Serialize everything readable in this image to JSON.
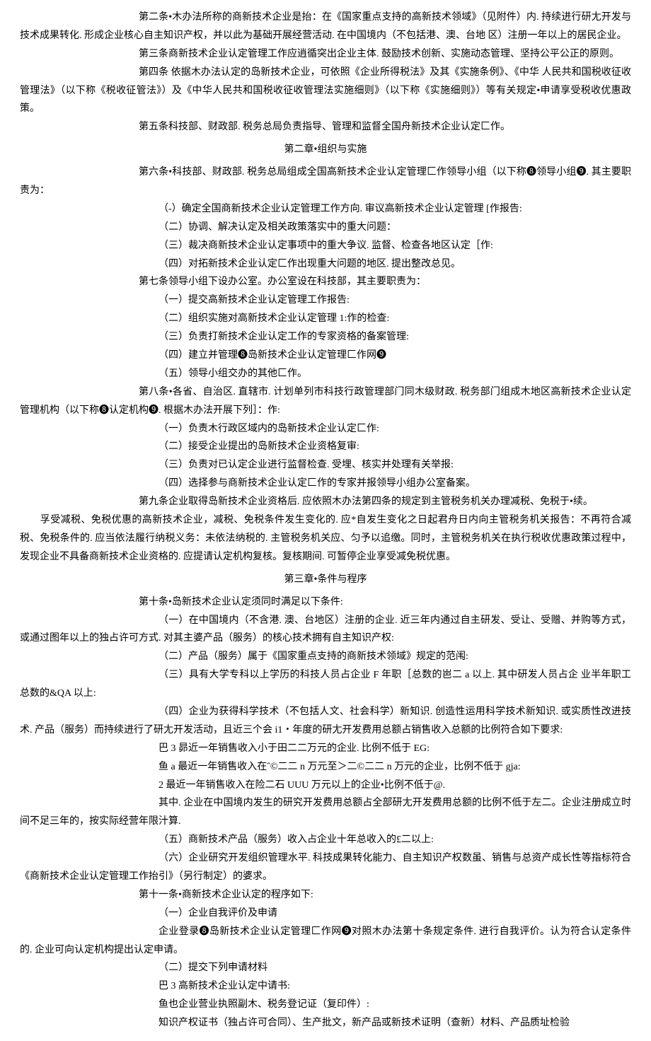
{
  "lines": [
    {
      "cls": "para indent-1",
      "bind": "p1"
    },
    {
      "cls": "para indent-1",
      "bind": "p2"
    },
    {
      "cls": "para indent-1",
      "bind": "p3"
    },
    {
      "cls": "para indent-1",
      "bind": "p4"
    },
    {
      "cls": "chapter",
      "bind": "ch2"
    },
    {
      "cls": "para indent-1",
      "bind": "p5"
    },
    {
      "cls": "list-item",
      "bind": "l6a"
    },
    {
      "cls": "list-item",
      "bind": "l6b"
    },
    {
      "cls": "list-item",
      "bind": "l6c"
    },
    {
      "cls": "list-item",
      "bind": "l6d"
    },
    {
      "cls": "para indent-1",
      "bind": "p7"
    },
    {
      "cls": "list-item",
      "bind": "l7a"
    },
    {
      "cls": "list-item",
      "bind": "l7b"
    },
    {
      "cls": "list-item",
      "bind": "l7c"
    },
    {
      "cls": "list-item",
      "bind": "l7d"
    },
    {
      "cls": "list-item",
      "bind": "l7e"
    },
    {
      "cls": "para indent-1",
      "bind": "p8"
    },
    {
      "cls": "list-item",
      "bind": "l8a"
    },
    {
      "cls": "list-item",
      "bind": "l8b"
    },
    {
      "cls": "list-item",
      "bind": "l8c"
    },
    {
      "cls": "list-item",
      "bind": "l8d"
    },
    {
      "cls": "para indent-1",
      "bind": "p9"
    },
    {
      "cls": "para indent-1 hang",
      "bind": "p9b"
    },
    {
      "cls": "chapter",
      "bind": "ch3"
    },
    {
      "cls": "para indent-1",
      "bind": "p10"
    },
    {
      "cls": "para indent-2",
      "bind": "l10a"
    },
    {
      "cls": "para indent-2",
      "bind": "l10b"
    },
    {
      "cls": "para indent-2",
      "bind": "l10c"
    },
    {
      "cls": "para indent-2",
      "bind": "l10d"
    },
    {
      "cls": "para indent-2",
      "bind": "l10d1"
    },
    {
      "cls": "para indent-2",
      "bind": "l10d2"
    },
    {
      "cls": "para indent-2",
      "bind": "l10d3"
    },
    {
      "cls": "para indent-2",
      "bind": "l10d4"
    },
    {
      "cls": "para indent-2",
      "bind": "l10e"
    },
    {
      "cls": "para indent-2",
      "bind": "l10f"
    },
    {
      "cls": "para indent-1",
      "bind": "p11"
    },
    {
      "cls": "para indent-2",
      "bind": "l11a"
    },
    {
      "cls": "para indent-2",
      "bind": "l11a1"
    },
    {
      "cls": "para indent-2",
      "bind": "l11b"
    },
    {
      "cls": "para indent-2",
      "bind": "l11b1"
    },
    {
      "cls": "para indent-2",
      "bind": "l11b2"
    },
    {
      "cls": "para indent-2",
      "bind": "l11b3"
    }
  ],
  "p1": "第二条•木办法所称的商新技术企业是抬：在《国家重点支持的高新技术领域》（见附件）内. 持续进行研尢开发与技术成果转化. 形成企业核心自主知识产权，并以此为基础开展经营活动. 在中国境内（不包括港、澳、台地 区）注册一年以上的居民企业。",
  "p2": "第三条商新技术企业认定管理工作应逍循突出企业主体. 鼓励技术创新、实施动态管理、坚持公平公正的原则。",
  "p3": "第四条 依据木办法认定的岛新技术企业，可依照《企业所得税法》及其《实施条例》、《中华 人民共和国税收征收管理法》（以下称《税收征管法》）及《中华人民共和国税收征收管理法实施细则》（以下称《实施细则》）等有关规定•申请享受税收优惠政策。",
  "p4": "第五条科技部、财政部. 税务总局负责指导、管理和监督全国舟新技术企业认定匚作。",
  "ch2": "第二章•组织与实施",
  "p5": "第六条•科技部、财政部. 税务总局组成全国高新技术企业认定管理匚作领导小组（以下称❽领导小组❾. 其主要职责为：",
  "l6a": "（-）确定全国商新技术企业认定管理工作方向. 审议高新技术企业认定管理 [作报告:",
  "l6b": "（二）协调、解决认定及相关政策落实中的重大问题：",
  "l6c": "（三）裁决商新技术企业认定事项中的重大争议. 监督、检查各地区认定［作:",
  "l6d": "（四）对拓新技术企业认定匚作出现重大问题的地区. 提出整改总见。",
  "p7": "第七条领导小组下设办公室。办公室设在科技部，其主要职责为：",
  "l7a": "（一）提交高新技术企业认定管理工作报告:",
  "l7b": "（二）组织实施对高新技术企业认定管理 1:作的检查:",
  "l7c": "（三）负责打新技术企业认定工作的专家资格的备案管理:",
  "l7d": "（四）建立并管理❽岛新技术企业认定管理匚作网❾",
  "l7e": "（五）领导小组交办的其他匚作。",
  "p8": "第八条•各省、自治区. 直辖市. 计划单列市科技行政管理部门同木级财政. 税务部门组成木地区高新技术企业认定管理机构（以下称❽认定机构❾. 根据木办法开展下列］：作:",
  "l8a": "（一）负责木行政区域内的岛新技术企业认定匚作:",
  "l8b": "（二）接受企业提出的岛新技术企业资格复审:",
  "l8c": "（三）负责对已认定企业进行监督检查. 受埋、核实并处理有关举报:",
  "l8d": "（四）选择参与商新技术企业认定匚作的专家并报领导小组办公室备案。",
  "p9": "第九条企业取得岛新技术企业资格后. 应依照木办法第四条的规定到主管税务机关办理减税、免税于•续。",
  "p9b": "　　孚受减税、免税优惠的高新技术企业，减税、免税条件发生变化的. 应*自发生变化之日起君舟日内向主管税务机关报告：不再符合减税、免税条件的. 应当依法履行纳税义务：未依法纳税的. 主管税务机关应、匀予以追缴。同时，主管税务机关在执行税收优惠政策过程中，发现企业不具备商新技术企业资格的. 应提请认定机构复核。复核期间. 可暂停企业享受减免税优惠。",
  "ch3": "第三章•条件与程序",
  "p10": "第十条•岛新技术企业认定须同时满足以下条件:",
  "l10a": "（一）在中国境内（不含港. 澳、台地区）注册的企业. 近三年内通过自主研发、受让、受赠、并购等方式，或通过图年以上的独占许可方式. 对其主婆产品（服务）的核心技术拥有自主知识产权:",
  "l10b": "（二）产品（服务）属于《国家重点支持的商新技术领域》规定的范闱:",
  "l10c": "（三）具有大学专科以上学历的科技人员占企业 F 年职［总数的岜二 a 以上. 其中研发人员占企 业半年职工总数的&QA 以上:",
  "l10d": "（四）企业为获得科学技术（不包括人文、社会科学）新知识. 创造性运用科学技术新知识. 或实质性改进技术. 产品（服务）而持续进行了研尢开发活动，且近三个会 i1・年度的研尢开发费用总额占销售收入总额的比例符合如下要求:",
  "l10d1": "巴 3 昴近一年销售收入小于田二二万元的企业. 比例不低于 EG:",
  "l10d2": "鱼 a 最近一年销售收入在ˆ©二二 n 万元至＞二©二二 n 万元的企业，比例不低于 gja:",
  "l10d3": "2 最近一年销售收入在险二石 UUU 万元以上的企业•比例不低于@.",
  "l10d4": "其中. 企业在中国境内发生的研究开发费用总额占全部研尢开发费用总额的比例不低于左二。企业注册成立时间不足三年的，按实际经营年限汁算.",
  "l10e": "（五）商新技术产品（服务）收入占企业十年总收入的£二以上:",
  "l10f": "（六）企业研究开发组织管理水平. 科技成果转化能力、自主知识产权数虽、销售与总资产成长性等指标符合《商新技术企业认定管理工作抬引》（另行制定）的婆求。",
  "p11": "第十一条•商新技术企业认定的程序如下:",
  "l11a": "（一）企业自我评价及申请",
  "l11a1": "企业登录❽岛新技术企业认定管理匚作网❾对照木办法第十条规定条件. 进行自我评价。认为符合认定条件的. 企业可向认定机构提出认定申请。",
  "l11b": "（二）提交下列申请材料",
  "l11b1": "巴 3 高新技术企业认定中请书:",
  "l11b2": "鱼也企业营业执照副木、税务登记证（复印件）:",
  "l11b3": "知识产权证书（独占许可合同）、生产批文，新产品或新技术证明（查新）材料、产品质址检验"
}
